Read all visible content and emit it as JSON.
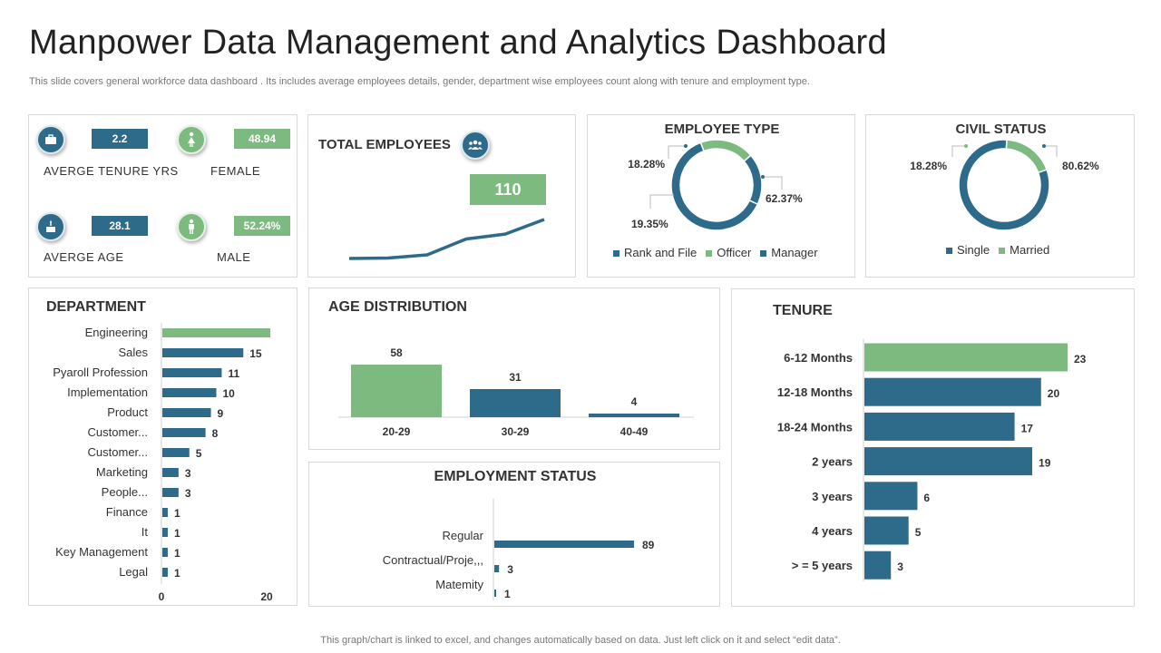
{
  "header": {
    "title": "Manpower Data Management and Analytics Dashboard",
    "subtitle": "This slide covers general workforce data dashboard . Its includes average employees details, gender, department wise employees count along with tenure and employment type.",
    "footer": "This graph/chart is linked to excel,  and changes automatically based on data. Just left click on it and select “edit data”."
  },
  "colors": {
    "blue": "#2e6a8a",
    "green": "#7cba7f"
  },
  "kpis": {
    "tenure": {
      "value": "2.2",
      "label": "AVERGE  TENURE  YRS",
      "icon": "briefcase-icon"
    },
    "female": {
      "value": "48.94",
      "label": "FEMALE",
      "icon": "female-icon"
    },
    "age": {
      "value": "28.1",
      "label": "AVERGE  AGE",
      "icon": "cake-icon"
    },
    "male": {
      "value": "52.24%",
      "label": "MALE",
      "icon": "male-icon"
    }
  },
  "chart_data": [
    {
      "id": "total_employees",
      "type": "line",
      "title": "TOTAL EMPLOYEES",
      "value_label": "110",
      "values": [
        0,
        0.2,
        1.5,
        8,
        10,
        16
      ]
    },
    {
      "id": "employee_type",
      "type": "pie",
      "title": "EMPLOYEE TYPE",
      "slices": [
        {
          "name": "Rank and File",
          "value": 62.37,
          "label": "62.37%",
          "color": "#2e6a8a"
        },
        {
          "name": "Officer",
          "value": 19.35,
          "label": "19.35%",
          "color": "#7cba7f"
        },
        {
          "name": "Manager",
          "value": 18.28,
          "label": "18.28%",
          "color": "#2e6a8a"
        }
      ],
      "legend": [
        "Rank and File",
        "Officer",
        "Manager"
      ]
    },
    {
      "id": "civil_status",
      "type": "pie",
      "title": "CIVIL STATUS",
      "slices": [
        {
          "name": "Single",
          "value": 80.62,
          "label": "80.62%",
          "color": "#2e6a8a"
        },
        {
          "name": "Married",
          "value": 18.28,
          "label": "18.28%",
          "color": "#7cba7f"
        }
      ],
      "legend": [
        "Single",
        "Married"
      ]
    },
    {
      "id": "department",
      "type": "bar",
      "orientation": "horizontal",
      "title": "DEPARTMENT",
      "categories": [
        "Engineering",
        "Sales",
        "Pyaroll Profession",
        "Implementation",
        "Product",
        "Customer...",
        "Customer...",
        "Marketing",
        "People...",
        "Finance",
        "It",
        "Key Management",
        "Legal"
      ],
      "values": [
        20,
        15,
        11,
        10,
        9,
        8,
        5,
        3,
        3,
        1,
        1,
        1,
        1
      ],
      "value_labels": [
        "",
        "15",
        "11",
        "10",
        "9",
        "8",
        "5",
        "3",
        "3",
        "1",
        "1",
        "1",
        "1"
      ],
      "highlight": [
        0
      ],
      "xlim": [
        0,
        20
      ],
      "xticks": [
        "0",
        "20"
      ]
    },
    {
      "id": "age_distribution",
      "type": "bar",
      "title": "AGE DISTRIBUTION",
      "categories": [
        "20-29",
        "30-29",
        "40-49"
      ],
      "values": [
        58,
        31,
        4
      ],
      "highlight": [
        0
      ],
      "ylim": [
        0,
        60
      ]
    },
    {
      "id": "employment_status",
      "type": "bar",
      "orientation": "horizontal",
      "title": "EMPLOYMENT STATUS",
      "categories": [
        "Regular",
        "Contractual/Proje,,,",
        "Matemity"
      ],
      "values": [
        89,
        3,
        1
      ],
      "xlim": [
        0,
        100
      ]
    },
    {
      "id": "tenure",
      "type": "bar",
      "orientation": "horizontal",
      "title": "TENURE",
      "categories": [
        "6-12 Months",
        "12-18 Months",
        "18-24 Months",
        "2 years",
        "3 years",
        "4 years",
        "> = 5 years"
      ],
      "values": [
        23,
        20,
        17,
        19,
        6,
        5,
        3
      ],
      "highlight": [
        0
      ],
      "xlim": [
        0,
        25
      ]
    }
  ]
}
